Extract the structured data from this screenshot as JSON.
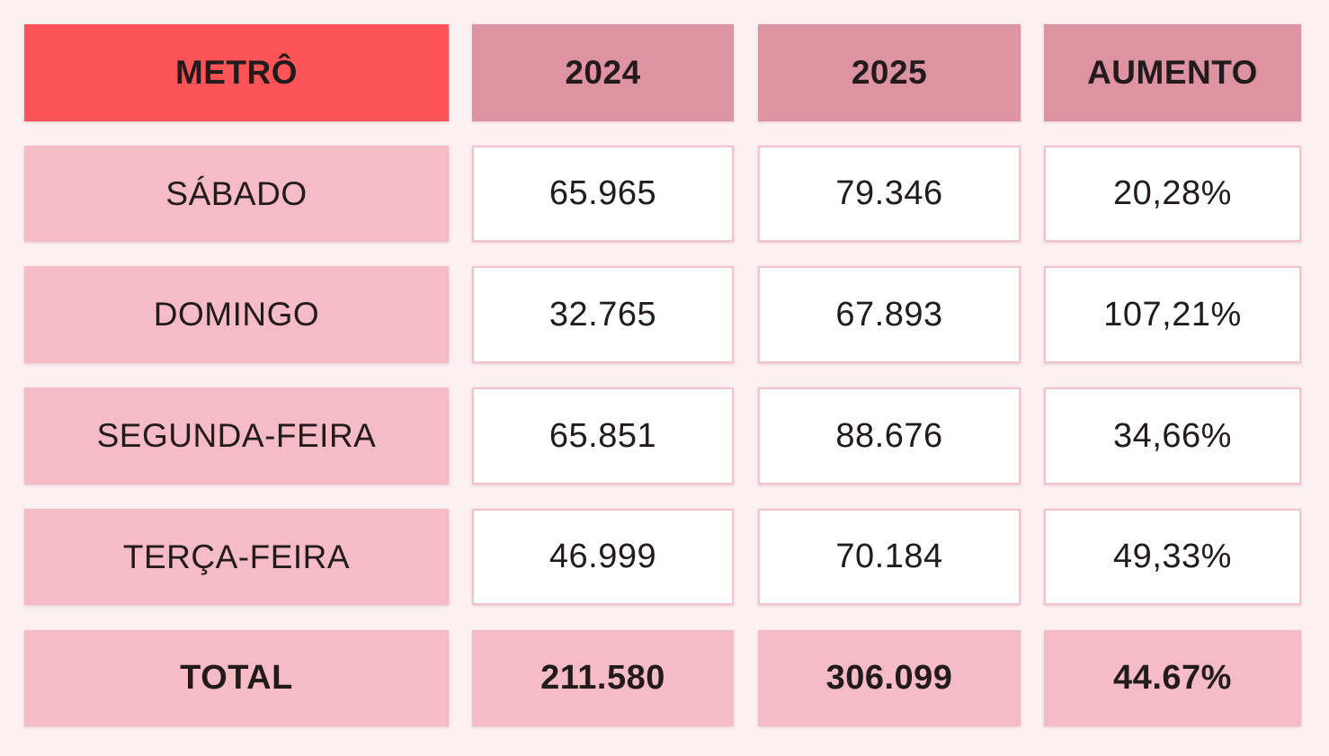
{
  "colors": {
    "background": "#fdf0f2",
    "corner_header": "#ff5457",
    "header": "#dd93a1",
    "row_label": "#f5bcc8",
    "value_cell": "#ffffff",
    "value_border": "#f0c3cd",
    "total_row": "#f5bcc8"
  },
  "chart_data": {
    "type": "table",
    "columns": [
      "METRÔ",
      "2024",
      "2025",
      "AUMENTO"
    ],
    "rows": [
      [
        "SÁBADO",
        "65.965",
        "79.346",
        "20,28%"
      ],
      [
        "DOMINGO",
        "32.765",
        "67.893",
        "107,21%"
      ],
      [
        "SEGUNDA-FEIRA",
        "65.851",
        "88.676",
        "34,66%"
      ],
      [
        "TERÇA-FEIRA",
        "46.999",
        "70.184",
        "49,33%"
      ]
    ],
    "total": [
      "TOTAL",
      "211.580",
      "306.099",
      "44.67%"
    ]
  }
}
